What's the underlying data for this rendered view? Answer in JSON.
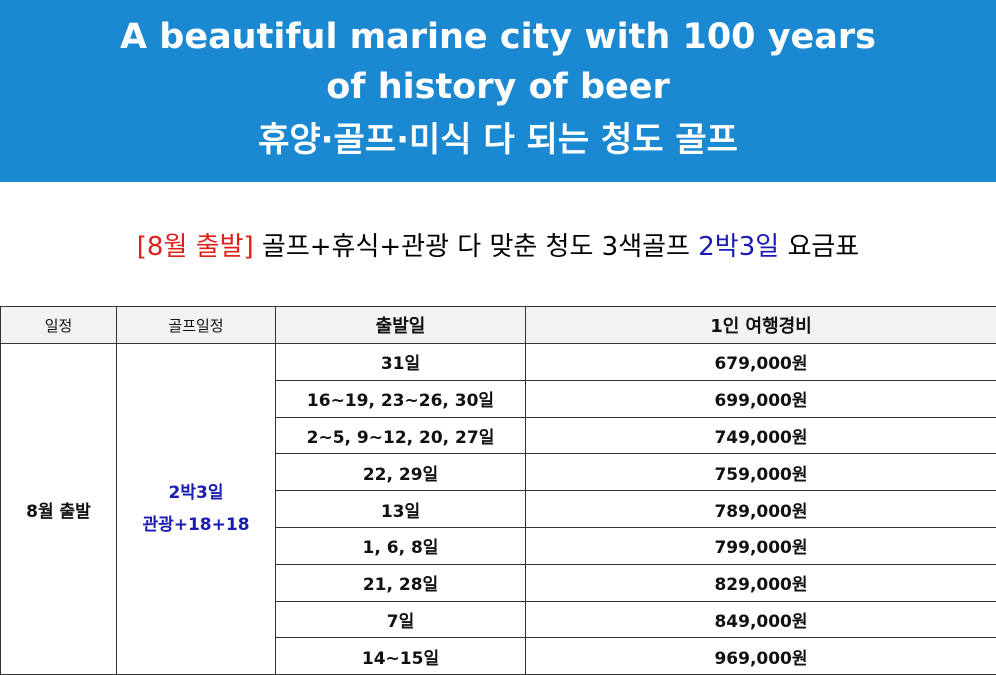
{
  "banner": {
    "lines": [
      "A beautiful marine city with 100 years",
      "of history of beer",
      "휴양·골프·미식 다 되는 청도 골프"
    ]
  },
  "subtitle": {
    "parts": [
      "[8월 출발]",
      "골프+휴식+관광 다 맞춘 청도 3색골프",
      "2박3일",
      "요금표"
    ]
  },
  "table": {
    "headers": [
      "일정",
      "골프일정",
      "출발일",
      "1인 여행경비"
    ],
    "period": "8월 출발",
    "golf_schedule": [
      "2박3일",
      "관광+18+18"
    ],
    "rows": [
      [
        "31일",
        "679,000원"
      ],
      [
        "16~19, 23~26, 30일",
        "699,000원"
      ],
      [
        "2~5, 9~12, 20, 27일",
        "749,000원"
      ],
      [
        "22, 29일",
        "759,000원"
      ],
      [
        "13일",
        "789,000원"
      ],
      [
        "1, 6, 8일",
        "799,000원"
      ],
      [
        "21, 28일",
        "829,000원"
      ],
      [
        "7일",
        "849,000원"
      ],
      [
        "14~15일",
        "969,000원"
      ]
    ]
  }
}
